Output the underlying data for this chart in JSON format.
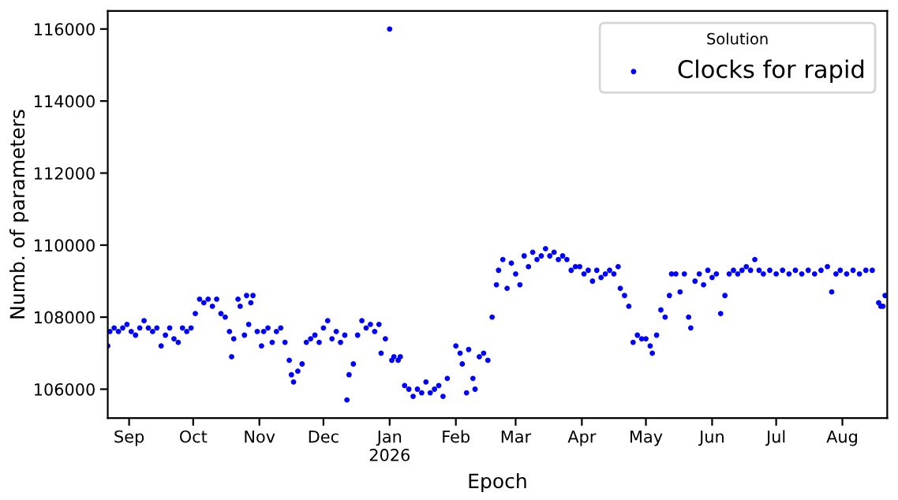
{
  "chart_data": {
    "type": "scatter",
    "xlabel": "Epoch",
    "ylabel": "Numb. of parameters",
    "legend_title": "Solution",
    "legend": "top right",
    "marker": "circle",
    "grid": false,
    "xlim": [
      "2025-08-22",
      "2026-08-22"
    ],
    "ylim": [
      105200,
      116500
    ],
    "yticks": [
      106000,
      108000,
      110000,
      112000,
      114000,
      116000
    ],
    "xticks": [
      {
        "value": "2025-09-01",
        "label": "Sep"
      },
      {
        "value": "2025-10-01",
        "label": "Oct"
      },
      {
        "value": "2025-11-01",
        "label": "Nov"
      },
      {
        "value": "2025-12-01",
        "label": "Dec"
      },
      {
        "value": "2026-01-01",
        "label": "Jan\n2026"
      },
      {
        "value": "2026-02-01",
        "label": "Feb"
      },
      {
        "value": "2026-03-01",
        "label": "Mar"
      },
      {
        "value": "2026-04-01",
        "label": "Apr"
      },
      {
        "value": "2026-05-01",
        "label": "May"
      },
      {
        "value": "2026-06-01",
        "label": "Jun"
      },
      {
        "value": "2026-07-01",
        "label": "Jul"
      },
      {
        "value": "2026-08-01",
        "label": "Aug"
      }
    ],
    "series": [
      {
        "name": "Clocks for rapid",
        "color": "#0000ff",
        "x": [
          "2025-08-22",
          "2025-08-23",
          "2025-08-25",
          "2025-08-27",
          "2025-08-29",
          "2025-08-31",
          "2025-09-02",
          "2025-09-04",
          "2025-09-06",
          "2025-09-08",
          "2025-09-10",
          "2025-09-12",
          "2025-09-14",
          "2025-09-16",
          "2025-09-18",
          "2025-09-20",
          "2025-09-22",
          "2025-09-24",
          "2025-09-26",
          "2025-09-28",
          "2025-09-30",
          "2025-10-02",
          "2025-10-04",
          "2025-10-06",
          "2025-10-08",
          "2025-10-10",
          "2025-10-12",
          "2025-10-14",
          "2025-10-16",
          "2025-10-18",
          "2025-10-19",
          "2025-10-20",
          "2025-10-22",
          "2025-10-23",
          "2025-10-25",
          "2025-10-26",
          "2025-10-27",
          "2025-10-28",
          "2025-10-29",
          "2025-10-31",
          "2025-11-02",
          "2025-11-03",
          "2025-11-05",
          "2025-11-07",
          "2025-11-09",
          "2025-11-11",
          "2025-11-13",
          "2025-11-15",
          "2025-11-16",
          "2025-11-17",
          "2025-11-19",
          "2025-11-21",
          "2025-11-23",
          "2025-11-25",
          "2025-11-27",
          "2025-11-29",
          "2025-12-01",
          "2025-12-03",
          "2025-12-05",
          "2025-12-07",
          "2025-12-09",
          "2025-12-11",
          "2025-12-12",
          "2025-12-13",
          "2025-12-15",
          "2025-12-17",
          "2025-12-19",
          "2025-12-21",
          "2025-12-23",
          "2025-12-25",
          "2025-12-27",
          "2025-12-28",
          "2025-12-30",
          "2026-01-01",
          "2026-01-02",
          "2026-01-03",
          "2026-01-05",
          "2026-01-06",
          "2026-01-08",
          "2026-01-10",
          "2026-01-12",
          "2026-01-14",
          "2026-01-16",
          "2026-01-18",
          "2026-01-20",
          "2026-01-22",
          "2026-01-24",
          "2026-01-26",
          "2026-01-28",
          "2026-02-01",
          "2026-02-03",
          "2026-02-04",
          "2026-02-06",
          "2026-02-07",
          "2026-02-09",
          "2026-02-10",
          "2026-02-12",
          "2026-02-14",
          "2026-02-16",
          "2026-02-18",
          "2026-02-20",
          "2026-02-21",
          "2026-02-23",
          "2026-02-25",
          "2026-02-27",
          "2026-03-01",
          "2026-03-03",
          "2026-03-05",
          "2026-03-07",
          "2026-03-09",
          "2026-03-11",
          "2026-03-13",
          "2026-03-15",
          "2026-03-17",
          "2026-03-19",
          "2026-03-21",
          "2026-03-23",
          "2026-03-25",
          "2026-03-27",
          "2026-03-29",
          "2026-03-31",
          "2026-04-02",
          "2026-04-04",
          "2026-04-06",
          "2026-04-08",
          "2026-04-10",
          "2026-04-12",
          "2026-04-14",
          "2026-04-16",
          "2026-04-18",
          "2026-04-19",
          "2026-04-21",
          "2026-04-23",
          "2026-04-25",
          "2026-04-27",
          "2026-04-29",
          "2026-05-01",
          "2026-05-03",
          "2026-05-04",
          "2026-05-06",
          "2026-05-08",
          "2026-05-10",
          "2026-05-12",
          "2026-05-13",
          "2026-05-15",
          "2026-05-17",
          "2026-05-19",
          "2026-05-21",
          "2026-05-22",
          "2026-05-24",
          "2026-05-26",
          "2026-05-28",
          "2026-05-30",
          "2026-06-01",
          "2026-06-03",
          "2026-06-05",
          "2026-06-07",
          "2026-06-09",
          "2026-06-11",
          "2026-06-13",
          "2026-06-15",
          "2026-06-17",
          "2026-06-19",
          "2026-06-21",
          "2026-06-23",
          "2026-06-25",
          "2026-06-28",
          "2026-07-01",
          "2026-07-04",
          "2026-07-07",
          "2026-07-10",
          "2026-07-13",
          "2026-07-16",
          "2026-07-19",
          "2026-07-22",
          "2026-07-25",
          "2026-07-27",
          "2026-07-29",
          "2026-07-31",
          "2026-08-03",
          "2026-08-06",
          "2026-08-09",
          "2026-08-12",
          "2026-08-15",
          "2026-08-18",
          "2026-08-19",
          "2026-08-20",
          "2026-08-21"
        ],
        "values": [
          107200,
          107600,
          107700,
          107600,
          107700,
          107800,
          107600,
          107500,
          107700,
          107900,
          107700,
          107600,
          107700,
          107200,
          107500,
          107700,
          107400,
          107300,
          107700,
          107600,
          107700,
          108100,
          108500,
          108400,
          108500,
          108300,
          108500,
          108100,
          108000,
          107600,
          106900,
          107400,
          108500,
          108300,
          107500,
          108600,
          107800,
          108400,
          108600,
          107600,
          107200,
          107600,
          107700,
          107300,
          107600,
          107700,
          107300,
          106800,
          106400,
          106200,
          106500,
          106700,
          107300,
          107400,
          107500,
          107300,
          107700,
          107900,
          107400,
          107600,
          107300,
          107500,
          105700,
          106400,
          106700,
          107500,
          107900,
          107700,
          107800,
          107600,
          107800,
          107000,
          107400,
          116000,
          106800,
          106900,
          106800,
          106900,
          106100,
          106000,
          105800,
          106000,
          105900,
          106200,
          105900,
          106000,
          106100,
          105800,
          106300,
          107200,
          107000,
          106700,
          105900,
          107100,
          106300,
          106000,
          106900,
          107000,
          106800,
          108000,
          108900,
          109300,
          109600,
          108800,
          109500,
          109200,
          108900,
          109700,
          109400,
          109800,
          109600,
          109700,
          109900,
          109700,
          109800,
          109600,
          109700,
          109600,
          109300,
          109400,
          109400,
          109200,
          109300,
          109000,
          109300,
          109100,
          109200,
          109300,
          109200,
          109400,
          108800,
          108600,
          108300,
          107300,
          107500,
          107400,
          107400,
          107200,
          107000,
          107500,
          108200,
          108000,
          108600,
          109200,
          109200,
          108700,
          109200,
          108000,
          107700,
          109000,
          109200,
          108900,
          109300,
          109100,
          109200,
          108100,
          108600,
          109200,
          109300,
          109200,
          109300,
          109400,
          109300,
          109600,
          109300,
          109200,
          109300,
          109200,
          109300,
          109200,
          109300,
          109200,
          109300,
          109200,
          109300,
          109400,
          108700,
          109200,
          109300,
          109200,
          109300,
          109200,
          109300,
          109300,
          108400,
          108300,
          108300,
          108600
        ]
      }
    ]
  }
}
